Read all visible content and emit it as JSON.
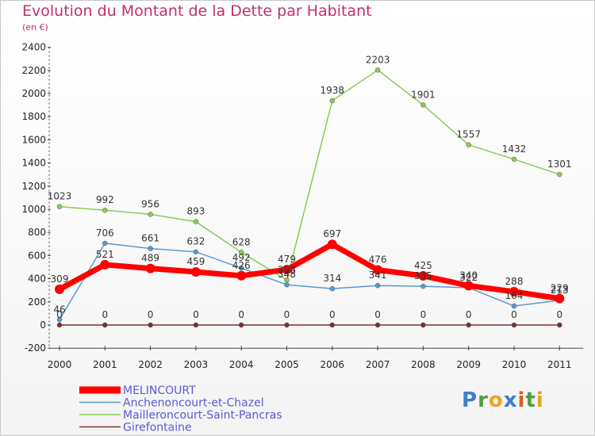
{
  "header": {
    "title": "Evolution du Montant de la Dette par Habitant",
    "subtitle": "(en €)"
  },
  "logo": {
    "letters": [
      {
        "ch": "P",
        "color": "#3a7fd0"
      },
      {
        "ch": "r",
        "color": "#4aa040"
      },
      {
        "ch": "o",
        "color": "#f0a020"
      },
      {
        "ch": "x",
        "color": "#3a7fd0"
      },
      {
        "ch": "i",
        "color": "#e05a20"
      },
      {
        "ch": "t",
        "color": "#4aa040"
      },
      {
        "ch": "i",
        "color": "#f0a020"
      }
    ]
  },
  "chart_data": {
    "type": "line",
    "title": "Evolution du Montant de la Dette par Habitant",
    "subtitle": "(en €)",
    "x": [
      "2000",
      "2001",
      "2002",
      "2003",
      "2004",
      "2005",
      "2006",
      "2007",
      "2008",
      "2009",
      "2010",
      "2011"
    ],
    "ylim": [
      -200,
      2400
    ],
    "yticks": [
      -200,
      0,
      200,
      400,
      600,
      800,
      1000,
      1200,
      1400,
      1600,
      1800,
      2000,
      2200,
      2400
    ],
    "grid": false,
    "legend_position": "bottom-left",
    "series": [
      {
        "name": "MELINCOURT",
        "color": "#ff0000",
        "values": [
          309,
          521,
          489,
          459,
          426,
          479,
          697,
          476,
          425,
          340,
          288,
          229
        ]
      },
      {
        "name": "Anchenoncourt-et-Chazel",
        "color": "#5a9ad0",
        "values": [
          46,
          706,
          661,
          632,
          492,
          348,
          314,
          341,
          335,
          322,
          164,
          213
        ]
      },
      {
        "name": "Mailleroncourt-Saint-Pancras",
        "color": "#88cc55",
        "values": [
          1023,
          992,
          956,
          893,
          628,
          388,
          1938,
          2203,
          1901,
          1557,
          1432,
          1301
        ]
      },
      {
        "name": "Girefontaine",
        "color": "#7a3030",
        "values": [
          0,
          0,
          0,
          0,
          0,
          0,
          0,
          0,
          0,
          0,
          0,
          0
        ]
      }
    ]
  }
}
